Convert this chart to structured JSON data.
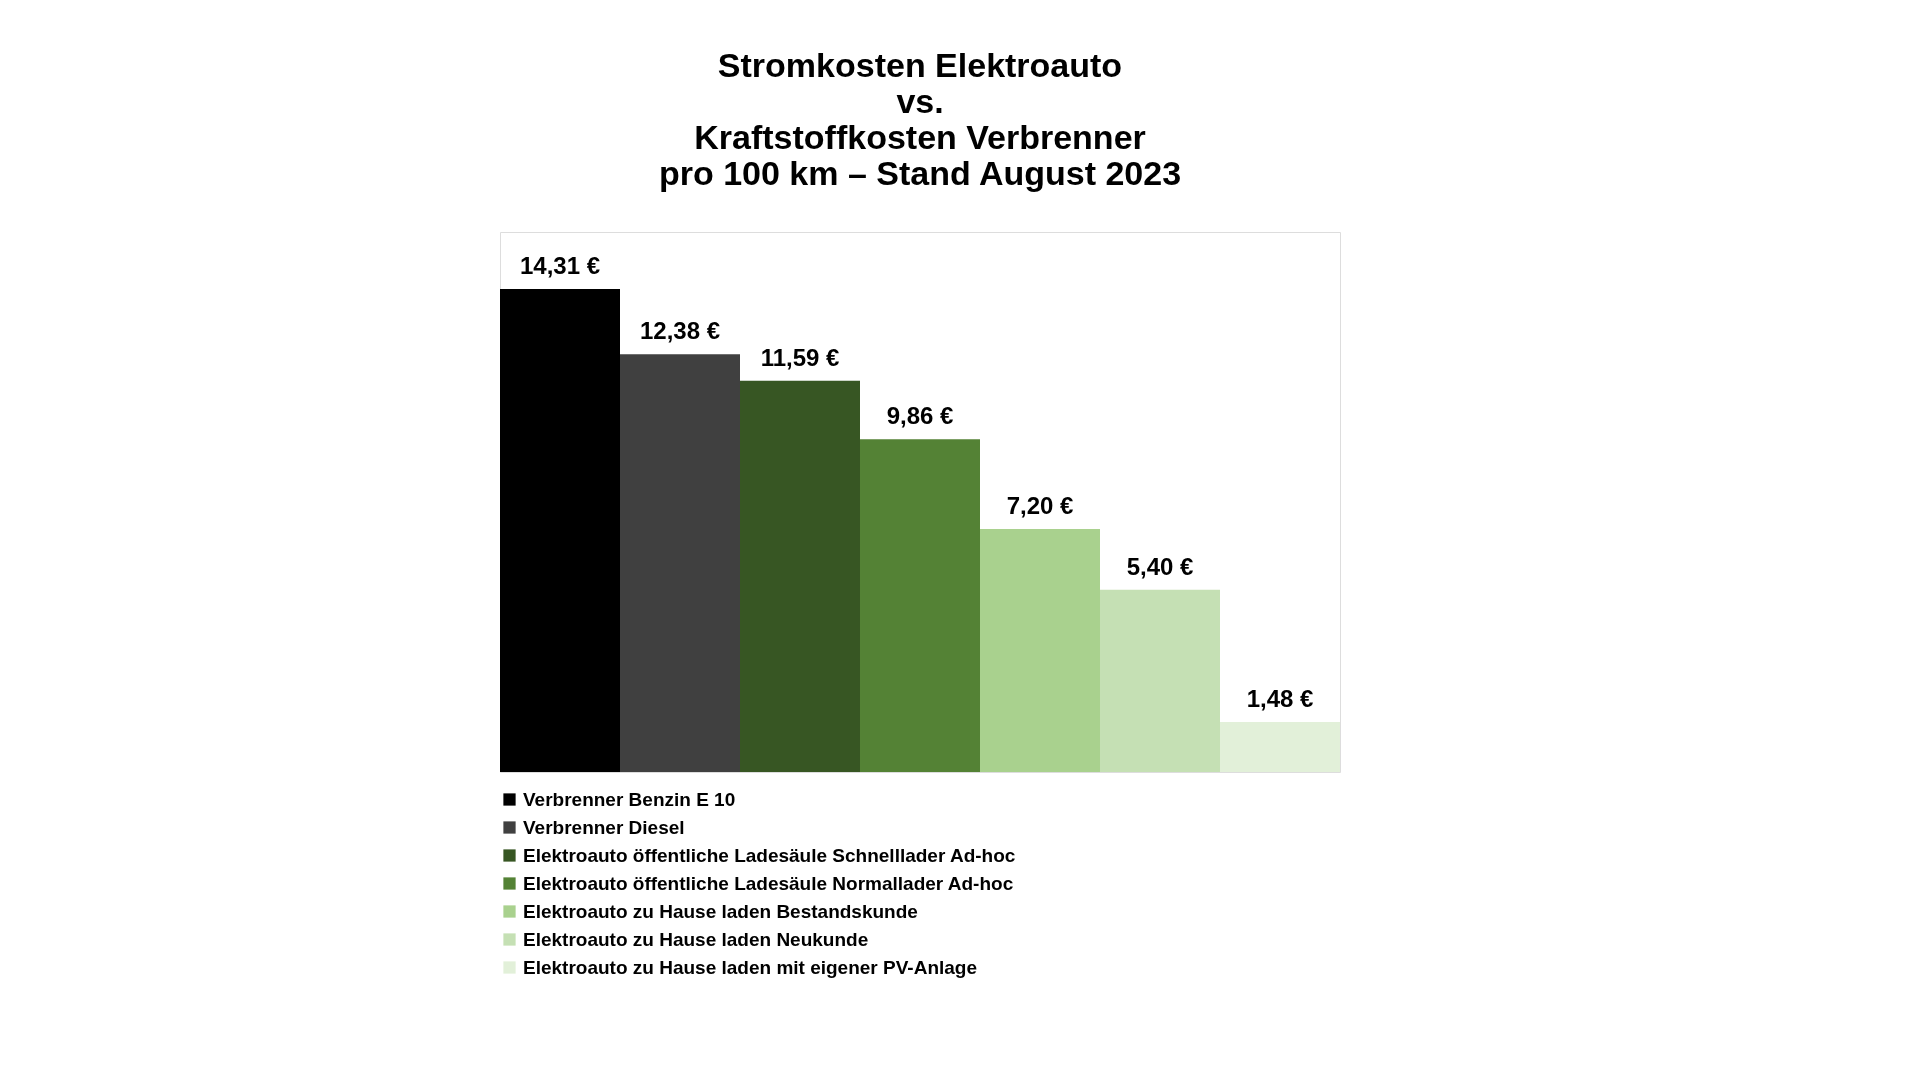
{
  "chart_data": {
    "type": "bar",
    "title": [
      "Stromkosten Elektroauto",
      "vs.",
      "Kraftstoffkosten Verbrenner",
      "pro 100 km – Stand August 2023"
    ],
    "categories": [
      null,
      null,
      null,
      null,
      null,
      null,
      null
    ],
    "stacked": true,
    "series": [
      {
        "name": "Verbrenner Benzin E 10",
        "color": "#000000",
        "values": [
          14.31,
          null,
          null,
          null,
          null,
          null,
          null
        ],
        "value_labels": [
          "14,31 €",
          null,
          null,
          null,
          null,
          null,
          null
        ]
      },
      {
        "name": "Verbrenner Diesel",
        "color": "#404040",
        "values": [
          null,
          12.38,
          null,
          null,
          null,
          null,
          null
        ],
        "value_labels": [
          null,
          "12,38 €",
          null,
          null,
          null,
          null,
          null
        ]
      },
      {
        "name": "Elektroauto öffentliche Ladesäule Schnelllader Ad-hoc",
        "color": "#375623",
        "values": [
          null,
          null,
          11.59,
          null,
          null,
          null,
          null
        ],
        "value_labels": [
          null,
          null,
          "11,59 €",
          null,
          null,
          null,
          null
        ]
      },
      {
        "name": "Elektroauto öffentliche Ladesäule Normallader Ad-hoc",
        "color": "#548235",
        "values": [
          null,
          null,
          null,
          9.86,
          null,
          null,
          null
        ],
        "value_labels": [
          null,
          null,
          null,
          "9,86 €",
          null,
          null,
          null
        ]
      },
      {
        "name": "Elektroauto zu Hause laden Bestandskunde",
        "color": "#a9d18e",
        "values": [
          null,
          null,
          null,
          null,
          7.2,
          null,
          null
        ],
        "value_labels": [
          null,
          null,
          null,
          null,
          "7,20 €",
          null,
          null
        ]
      },
      {
        "name": "Elektroauto zu Hause laden Neukunde",
        "color": "#c5e0b4",
        "values": [
          null,
          null,
          null,
          null,
          null,
          5.4,
          null
        ],
        "value_labels": [
          null,
          null,
          null,
          null,
          null,
          "5,40 €",
          null
        ]
      },
      {
        "name": "Elektroauto zu Hause laden mit eigener PV-Anlage",
        "color": "#e2f0d9",
        "values": [
          null,
          null,
          null,
          null,
          null,
          null,
          1.48
        ],
        "value_labels": [
          null,
          null,
          null,
          null,
          null,
          null,
          "1,48 €"
        ]
      }
    ],
    "legend": "bottom",
    "tick_labels": false,
    "grid": false
  }
}
